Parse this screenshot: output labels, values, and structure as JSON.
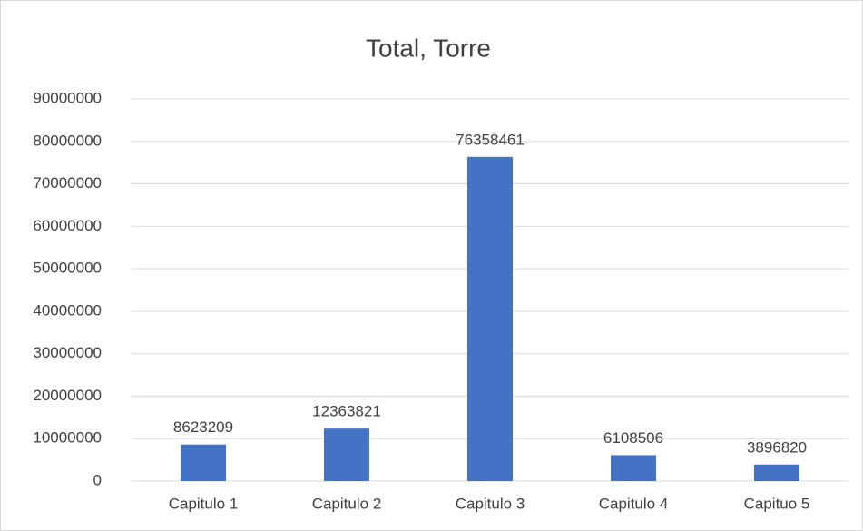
{
  "chart_data": {
    "type": "bar",
    "title": "Total, Torre",
    "categories": [
      "Capitulo 1",
      "Capitulo 2",
      "Capitulo 3",
      "Capitulo 4",
      "Capituo 5"
    ],
    "values": [
      8623209,
      12363821,
      76358461,
      6108506,
      3896820
    ],
    "color": "#4472c4",
    "ylim": [
      0,
      90000000
    ],
    "yticks": [
      0,
      10000000,
      20000000,
      30000000,
      40000000,
      50000000,
      60000000,
      70000000,
      80000000,
      90000000
    ],
    "grid": true,
    "data_labels": true
  }
}
